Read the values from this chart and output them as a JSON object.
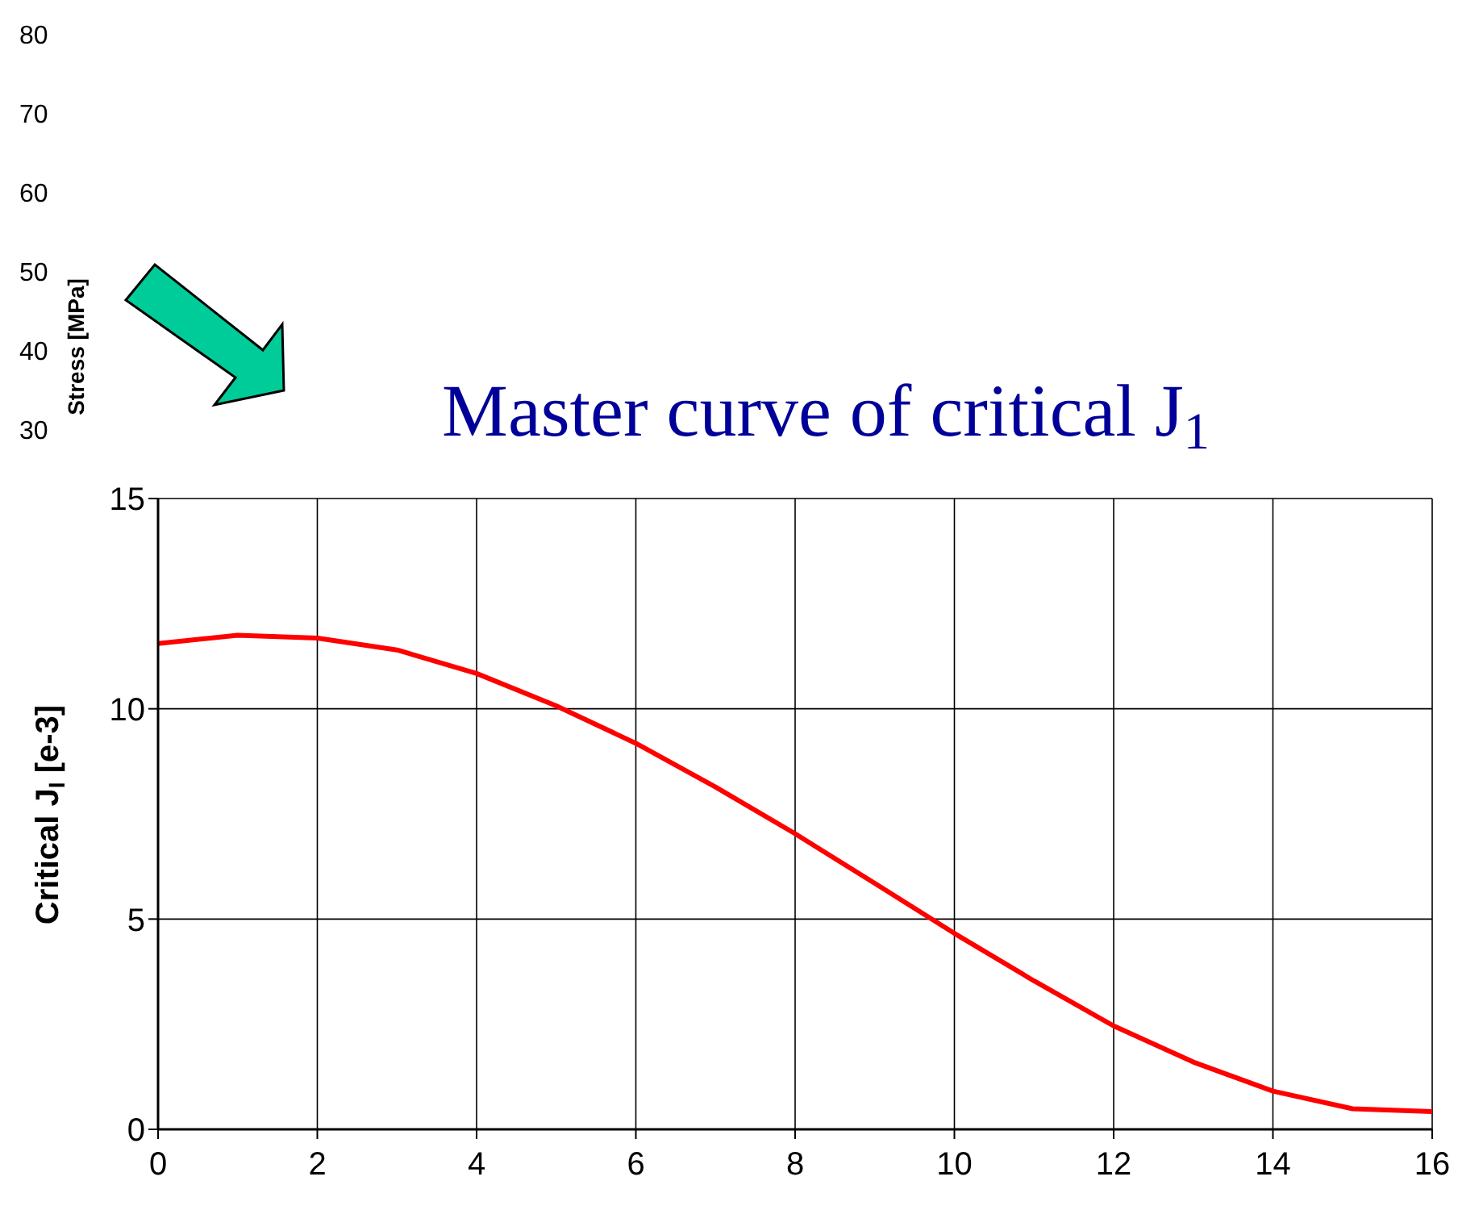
{
  "chart_data": {
    "type": "line",
    "title": "Master curve of critical J$_{1}$",
    "ylabel": "Critical J$_{I}$ [e-3]",
    "x": [
      0,
      1,
      2,
      3,
      4,
      5,
      6,
      7,
      8,
      9,
      10,
      11,
      12,
      13,
      14,
      15,
      16
    ],
    "series": [
      {
        "color": "#ff0000",
        "values": [
          11.55,
          11.75,
          11.68,
          11.4,
          10.84,
          10.07,
          9.18,
          8.14,
          7.03,
          5.85,
          4.66,
          3.53,
          2.46,
          1.6,
          0.91,
          0.49,
          0.42
        ]
      }
    ],
    "xlim": [
      0,
      16
    ],
    "xticks": [
      0,
      2,
      4,
      6,
      8,
      10,
      12,
      14,
      16
    ],
    "ylim": [
      0,
      15
    ],
    "yticks": [
      0,
      5,
      10,
      15
    ],
    "grid": true,
    "marker": "none",
    "line_style": "solid",
    "annotations": [
      "Stress [MPa]",
      "80",
      "70",
      "60",
      "50",
      "40",
      "30"
    ]
  }
}
